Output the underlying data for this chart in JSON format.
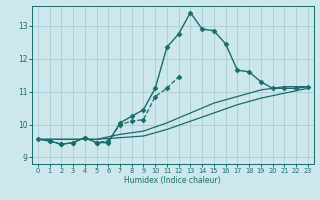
{
  "xlabel": "Humidex (Indice chaleur)",
  "bg_color": "#cce8ec",
  "grid_color": "#aacdd4",
  "line_color": "#1a6b6b",
  "xlim": [
    -0.5,
    23.5
  ],
  "ylim": [
    8.8,
    13.6
  ],
  "yticks": [
    9,
    10,
    11,
    12,
    13
  ],
  "xticks": [
    0,
    1,
    2,
    3,
    4,
    5,
    6,
    7,
    8,
    9,
    10,
    11,
    12,
    13,
    14,
    15,
    16,
    17,
    18,
    19,
    20,
    21,
    22,
    23
  ],
  "curves": [
    {
      "x": [
        0,
        1,
        2,
        3,
        4,
        5,
        6,
        7,
        8,
        9,
        10,
        11,
        12,
        13,
        14,
        15,
        16,
        17,
        18,
        19,
        20,
        21,
        22,
        23
      ],
      "y": [
        9.55,
        9.5,
        9.4,
        9.45,
        9.6,
        9.45,
        9.45,
        10.05,
        10.25,
        10.45,
        11.1,
        12.35,
        12.75,
        13.4,
        12.9,
        12.85,
        12.45,
        11.65,
        11.6,
        11.3,
        11.1,
        11.1,
        11.1,
        11.15
      ],
      "linestyle": "-",
      "marker": "D",
      "markersize": 2.5,
      "linewidth": 1.0
    },
    {
      "x": [
        1,
        2,
        3,
        4,
        5,
        6,
        7,
        8,
        9,
        10,
        11,
        12
      ],
      "y": [
        9.5,
        9.4,
        9.45,
        9.6,
        9.45,
        9.5,
        10.0,
        10.1,
        10.15,
        10.85,
        11.1,
        11.45
      ],
      "linestyle": "--",
      "marker": "D",
      "markersize": 2.5,
      "linewidth": 0.9
    },
    {
      "x": [
        0,
        5,
        7,
        9,
        11,
        13,
        14,
        15,
        16,
        17,
        18,
        19,
        20,
        21,
        22,
        23
      ],
      "y": [
        9.55,
        9.55,
        9.7,
        9.8,
        10.05,
        10.35,
        10.5,
        10.65,
        10.75,
        10.85,
        10.95,
        11.05,
        11.1,
        11.15,
        11.15,
        11.15
      ],
      "linestyle": "-",
      "marker": null,
      "markersize": 0,
      "linewidth": 0.9
    },
    {
      "x": [
        0,
        5,
        7,
        9,
        11,
        13,
        15,
        17,
        19,
        21,
        23
      ],
      "y": [
        9.55,
        9.55,
        9.6,
        9.65,
        9.85,
        10.1,
        10.35,
        10.6,
        10.8,
        10.95,
        11.1
      ],
      "linestyle": "-",
      "marker": null,
      "markersize": 0,
      "linewidth": 0.9
    }
  ]
}
